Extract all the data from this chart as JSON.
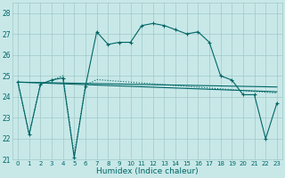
{
  "title": "",
  "xlabel": "Humidex (Indice chaleur)",
  "ylabel": "",
  "bg_color": "#c8e8e8",
  "grid_color": "#a0c8c8",
  "line_color": "#006666",
  "ylim": [
    21,
    28.5
  ],
  "xlim": [
    -0.5,
    23.5
  ],
  "yticks": [
    21,
    22,
    23,
    24,
    25,
    26,
    27,
    28
  ],
  "xticks": [
    0,
    1,
    2,
    3,
    4,
    5,
    6,
    7,
    8,
    9,
    10,
    11,
    12,
    13,
    14,
    15,
    16,
    17,
    18,
    19,
    20,
    21,
    22,
    23
  ],
  "series1_x": [
    0,
    1,
    2,
    3,
    4,
    5,
    6,
    7,
    8,
    9,
    10,
    11,
    12,
    13,
    14,
    15,
    16,
    17,
    18,
    19,
    20,
    21,
    22,
    23
  ],
  "series1_y": [
    24.7,
    22.2,
    24.6,
    24.8,
    24.9,
    21.1,
    24.5,
    27.1,
    26.5,
    26.6,
    26.6,
    27.4,
    27.5,
    27.4,
    27.2,
    27.0,
    27.1,
    26.6,
    25.0,
    24.8,
    24.1,
    24.1,
    22.0,
    23.7
  ],
  "series2_x": [
    0,
    1,
    2,
    3,
    4,
    5,
    6,
    7,
    8,
    9,
    10,
    11,
    12,
    13,
    14,
    15,
    16,
    17,
    18,
    19,
    20,
    21,
    22,
    23
  ],
  "series2_y": [
    24.7,
    22.2,
    24.6,
    24.8,
    25.0,
    21.2,
    24.55,
    24.82,
    24.78,
    24.74,
    24.7,
    24.66,
    24.62,
    24.58,
    24.54,
    24.5,
    24.46,
    24.42,
    24.38,
    24.34,
    24.3,
    24.26,
    24.22,
    24.18
  ],
  "series3_x": [
    0,
    1,
    2,
    3,
    4,
    5,
    6,
    7,
    8,
    9,
    10,
    11,
    12,
    13,
    14,
    15,
    16,
    17,
    18,
    19,
    20,
    21,
    22,
    23
  ],
  "series3_y": [
    24.7,
    24.69,
    24.68,
    24.67,
    24.66,
    24.65,
    24.64,
    24.63,
    24.62,
    24.61,
    24.6,
    24.59,
    24.58,
    24.57,
    24.56,
    24.55,
    24.54,
    24.53,
    24.52,
    24.51,
    24.5,
    24.49,
    24.48,
    24.47
  ],
  "series4_x": [
    0,
    1,
    2,
    3,
    4,
    5,
    6,
    7,
    8,
    9,
    10,
    11,
    12,
    13,
    14,
    15,
    16,
    17,
    18,
    19,
    20,
    21,
    22,
    23
  ],
  "series4_y": [
    24.7,
    24.68,
    24.66,
    24.64,
    24.62,
    24.6,
    24.58,
    24.56,
    24.54,
    24.52,
    24.5,
    24.48,
    24.46,
    24.44,
    24.42,
    24.4,
    24.38,
    24.36,
    24.34,
    24.32,
    24.3,
    24.28,
    24.26,
    24.24
  ]
}
